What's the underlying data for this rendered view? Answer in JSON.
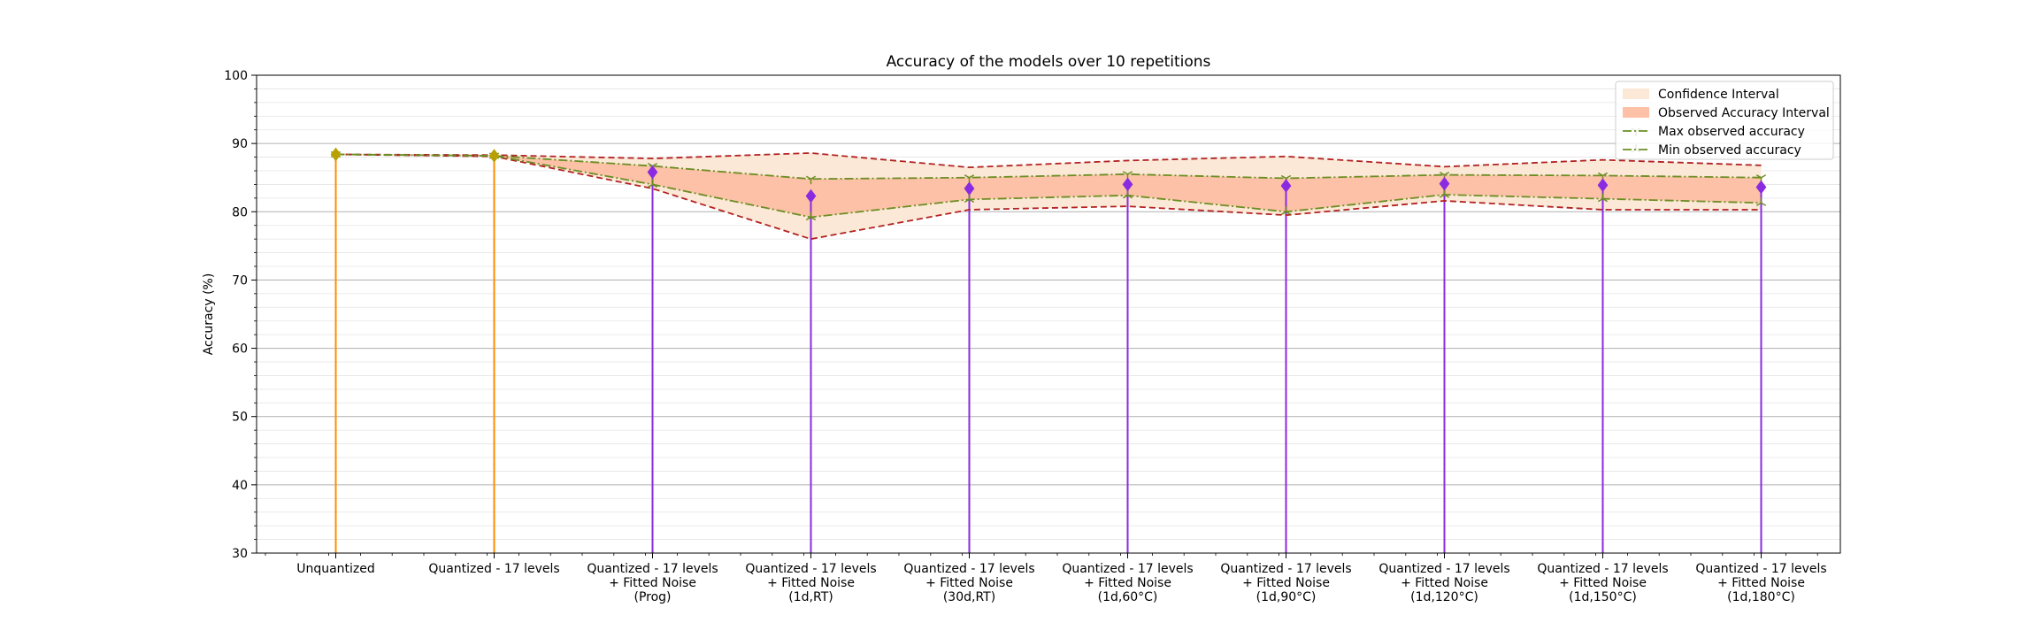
{
  "chart_data": {
    "type": "line",
    "title": "Accuracy of the models over 10 repetitions",
    "xlabel": "",
    "ylabel": "Accuracy (%)",
    "ylim": [
      30,
      100
    ],
    "yticks": [
      30,
      40,
      50,
      60,
      70,
      80,
      90,
      100
    ],
    "grid": true,
    "legend_position": "top-right",
    "categories": [
      [
        "Unquantized"
      ],
      [
        "Quantized - 17 levels"
      ],
      [
        "Quantized - 17 levels",
        "+ Fitted Noise",
        "(Prog)"
      ],
      [
        "Quantized - 17 levels",
        "+ Fitted Noise",
        "(1d,RT)"
      ],
      [
        "Quantized - 17 levels",
        "+ Fitted Noise",
        "(30d,RT)"
      ],
      [
        "Quantized - 17 levels",
        "+ Fitted Noise",
        "(1d,60°C)"
      ],
      [
        "Quantized - 17 levels",
        "+ Fitted Noise",
        "(1d,90°C)"
      ],
      [
        "Quantized - 17 levels",
        "+ Fitted Noise",
        "(1d,120°C)"
      ],
      [
        "Quantized - 17 levels",
        "+ Fitted Noise",
        "(1d,150°C)"
      ],
      [
        "Quantized - 17 levels",
        "+ Fitted Noise",
        "(1d,180°C)"
      ]
    ],
    "mean": [
      88.4,
      88.2,
      85.8,
      82.3,
      83.4,
      84.0,
      83.8,
      84.1,
      83.9,
      83.6
    ],
    "max_observed": [
      88.4,
      88.2,
      86.7,
      84.8,
      85.0,
      85.5,
      84.9,
      85.4,
      85.3,
      85.0
    ],
    "min_observed": [
      88.4,
      88.2,
      84.0,
      79.2,
      81.8,
      82.4,
      80.0,
      82.5,
      81.9,
      81.3
    ],
    "ci_upper": [
      88.4,
      88.3,
      87.8,
      88.6,
      86.5,
      87.5,
      88.1,
      86.6,
      87.6,
      86.8
    ],
    "ci_lower": [
      88.4,
      88.1,
      83.4,
      76.0,
      80.3,
      80.8,
      79.5,
      81.6,
      80.3,
      80.3
    ],
    "legend": [
      "Confidence Interval",
      "Observed Accuracy Interval",
      "Max observed accuracy",
      "Min observed accuracy"
    ],
    "colors": {
      "confidence_interval": "#fce8d6",
      "observed_interval": "#fcc1a6",
      "ci_bound_line": "#b22222",
      "observed_line": "#6b8e23",
      "stem_unquantized": "#ff8c00",
      "stem_noise": "#8a2be2",
      "mean_marker_noise": "#8a2be2",
      "mean_marker_base": "#b8a000"
    }
  }
}
